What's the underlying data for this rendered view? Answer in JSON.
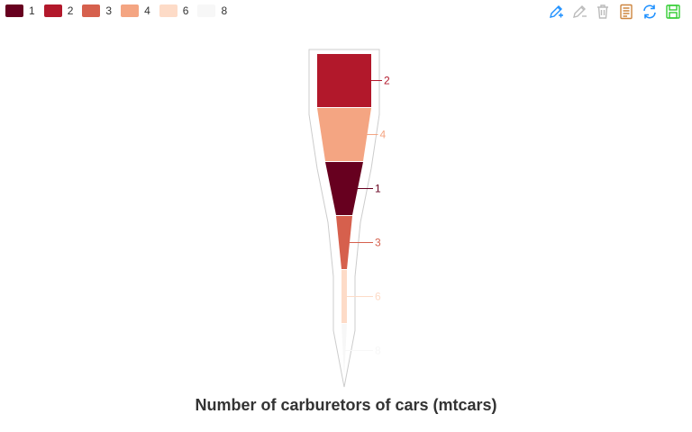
{
  "chart_data": {
    "type": "funnel",
    "title": "Number of carburetors of cars (mtcars)",
    "order_top_to_bottom": [
      "2",
      "4",
      "1",
      "3",
      "6",
      "8"
    ],
    "categories": [
      "1",
      "2",
      "3",
      "4",
      "6",
      "8"
    ],
    "values": [
      7,
      10,
      3,
      10,
      1,
      1
    ],
    "colors": [
      "#67001f",
      "#b2182b",
      "#d6604d",
      "#f4a582",
      "#fddbc7",
      "#f7f7f7"
    ],
    "legend_position": "top-left"
  },
  "toolbox": {
    "icons": [
      "draw-add-icon",
      "draw-erase-icon",
      "clear-icon",
      "data-view-icon",
      "restore-icon",
      "save-image-icon"
    ],
    "colors": [
      "#1e90ff",
      "#bbbbbb",
      "#bbbbbb",
      "#cd853f",
      "#1e90ff",
      "#32cd32"
    ]
  }
}
